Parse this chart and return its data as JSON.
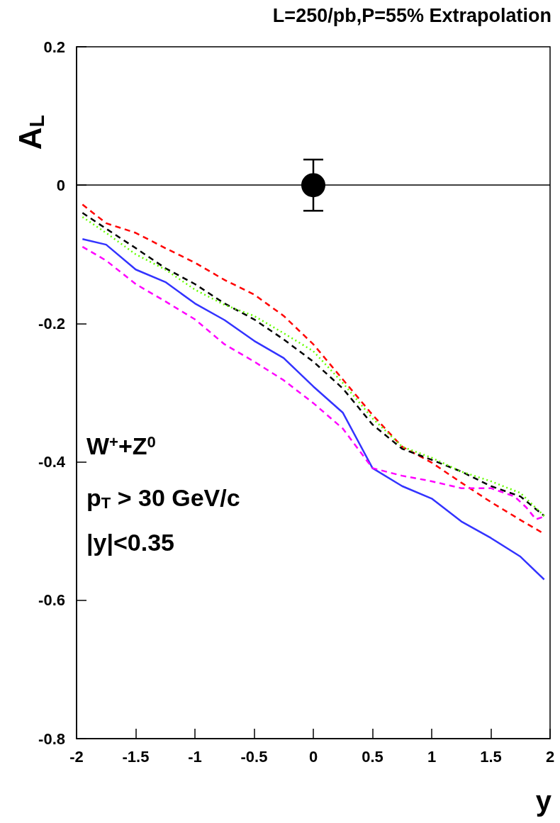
{
  "chart_data": {
    "type": "line",
    "title": "L=250/pb,P=55% Extrapolation",
    "xlabel": "y",
    "ylabel": "A$_{L}$",
    "xlim": [
      -2,
      2
    ],
    "xticks": [
      -2,
      -1.5,
      -1,
      -0.5,
      0,
      0.5,
      1,
      1.5,
      2
    ],
    "ylim": [
      -0.8,
      0.2
    ],
    "yticks": [
      -0.8,
      -0.6,
      -0.4,
      -0.2,
      0,
      0.2
    ],
    "grid": false,
    "marker": "none",
    "x": [
      -1.95,
      -1.75,
      -1.5,
      -1.25,
      -1,
      -0.75,
      -0.5,
      -0.25,
      0,
      0.25,
      0.5,
      0.75,
      1,
      1.25,
      1.5,
      1.75,
      1.95
    ],
    "series": [
      {
        "color": "#ff0000",
        "line_style": "dashed",
        "values": [
          -0.028,
          -0.055,
          -0.069,
          -0.091,
          -0.112,
          -0.137,
          -0.158,
          -0.189,
          -0.23,
          -0.281,
          -0.332,
          -0.378,
          -0.401,
          -0.43,
          -0.458,
          -0.484,
          -0.504
        ]
      },
      {
        "color": "#000000",
        "line_style": "dashed",
        "values": [
          -0.04,
          -0.063,
          -0.091,
          -0.12,
          -0.143,
          -0.171,
          -0.194,
          -0.223,
          -0.255,
          -0.294,
          -0.346,
          -0.381,
          -0.397,
          -0.414,
          -0.435,
          -0.45,
          -0.478
        ]
      },
      {
        "color": "#66ff00",
        "line_style": "dotted",
        "values": [
          -0.046,
          -0.069,
          -0.1,
          -0.122,
          -0.151,
          -0.173,
          -0.189,
          -0.214,
          -0.24,
          -0.286,
          -0.337,
          -0.378,
          -0.394,
          -0.414,
          -0.428,
          -0.445,
          -0.478
        ]
      },
      {
        "color": "#3333ff",
        "line_style": "solid",
        "values": [
          -0.078,
          -0.086,
          -0.122,
          -0.14,
          -0.171,
          -0.195,
          -0.225,
          -0.25,
          -0.291,
          -0.329,
          -0.409,
          -0.435,
          -0.453,
          -0.486,
          -0.51,
          -0.537,
          -0.57
        ]
      },
      {
        "color": "#ff00ff",
        "line_style": "dashed",
        "x": [
          -1.95,
          -1.75,
          -1.5,
          -1.25,
          -1,
          -0.75,
          -0.5,
          -0.25,
          0,
          0.25,
          0.5,
          0.75,
          1,
          1.25,
          1.5,
          1.7,
          1.8,
          1.88,
          1.95
        ],
        "values": [
          -0.089,
          -0.109,
          -0.143,
          -0.168,
          -0.194,
          -0.23,
          -0.255,
          -0.282,
          -0.315,
          -0.352,
          -0.409,
          -0.42,
          -0.428,
          -0.438,
          -0.438,
          -0.45,
          -0.466,
          -0.483,
          -0.479
        ]
      },
      {
        "type": "scatter",
        "marker": "circle",
        "color": "#000000",
        "x": [
          0
        ],
        "values": [
          0
        ],
        "errors": [
          0.037
        ]
      }
    ],
    "ref_lines": [
      {
        "axis": "y",
        "value": 0,
        "color": "#000000",
        "line_style": "solid"
      }
    ],
    "annotations": [
      "W$^{+}$+Z$^{0}$",
      "p$_{T}$ > 30 GeV/c",
      "|y|<0.35"
    ]
  }
}
